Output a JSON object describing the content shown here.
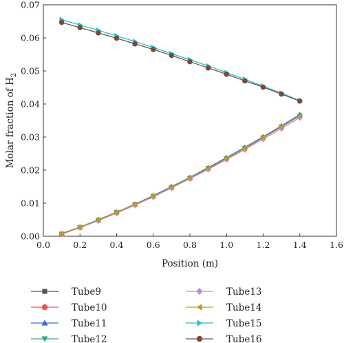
{
  "chart_data": {
    "type": "line",
    "xlabel": "Position (m)",
    "ylabel": "Molar fraction of H",
    "ylabel_subscript": "2",
    "xlim": [
      0.0,
      1.6
    ],
    "ylim": [
      0.0,
      0.07
    ],
    "xticks": [
      "0.0",
      "0.2",
      "0.4",
      "0.6",
      "0.8",
      "1.0",
      "1.2",
      "1.4",
      "1.6"
    ],
    "yticks": [
      "0.00",
      "0.01",
      "0.02",
      "0.03",
      "0.04",
      "0.05",
      "0.06",
      "0.07"
    ],
    "grid": false,
    "legend_position": "bottom",
    "x": [
      0.1,
      0.2,
      0.3,
      0.4,
      0.5,
      0.6,
      0.7,
      0.8,
      0.9,
      1.0,
      1.1,
      1.2,
      1.3,
      1.4
    ],
    "series": [
      {
        "name": "Tube9",
        "color": "#555555",
        "marker": "square",
        "values": [
          0.0007,
          0.0027,
          0.0049,
          0.0072,
          0.0096,
          0.0121,
          0.0148,
          0.0176,
          0.0205,
          0.0235,
          0.0266,
          0.0298,
          0.0331,
          0.0364
        ]
      },
      {
        "name": "Tube10",
        "color": "#e8534f",
        "marker": "circle",
        "values": [
          0.0007,
          0.0027,
          0.0049,
          0.0072,
          0.0096,
          0.0121,
          0.0148,
          0.0176,
          0.0205,
          0.0235,
          0.0266,
          0.0298,
          0.0331,
          0.0364
        ]
      },
      {
        "name": "Tube11",
        "color": "#2f6fd6",
        "marker": "triangle-up",
        "values": [
          0.0008,
          0.0028,
          0.005,
          0.0073,
          0.0097,
          0.0123,
          0.015,
          0.0178,
          0.0208,
          0.0238,
          0.0269,
          0.0301,
          0.0334,
          0.0368
        ]
      },
      {
        "name": "Tube12",
        "color": "#3aa876",
        "marker": "triangle-down",
        "values": [
          0.0007,
          0.0027,
          0.0049,
          0.0072,
          0.0096,
          0.0121,
          0.0148,
          0.0176,
          0.0205,
          0.0235,
          0.0266,
          0.0298,
          0.0331,
          0.0364
        ]
      },
      {
        "name": "Tube13",
        "color": "#b98ae6",
        "marker": "diamond",
        "values": [
          0.0006,
          0.0026,
          0.0047,
          0.007,
          0.0094,
          0.0119,
          0.0146,
          0.0174,
          0.0202,
          0.0232,
          0.0262,
          0.0294,
          0.0326,
          0.0359
        ]
      },
      {
        "name": "Tube14",
        "color": "#c49a12",
        "marker": "triangle-left",
        "values": [
          0.0007,
          0.0027,
          0.0049,
          0.0072,
          0.0096,
          0.0121,
          0.0148,
          0.0176,
          0.0205,
          0.0235,
          0.0266,
          0.0298,
          0.0331,
          0.0364
        ]
      },
      {
        "name": "Tube15",
        "color": "#21c4c8",
        "marker": "triangle-right",
        "values": [
          0.0655,
          0.0639,
          0.0623,
          0.0606,
          0.0589,
          0.0571,
          0.0552,
          0.0534,
          0.0515,
          0.0495,
          0.0475,
          0.0454,
          0.0433,
          0.041
        ]
      },
      {
        "name": "Tube16",
        "color": "#7a4a3a",
        "marker": "circle",
        "values": [
          0.0647,
          0.0631,
          0.0615,
          0.0599,
          0.0582,
          0.0565,
          0.0547,
          0.0528,
          0.0509,
          0.049,
          0.047,
          0.0451,
          0.043,
          0.0409
        ]
      }
    ]
  }
}
